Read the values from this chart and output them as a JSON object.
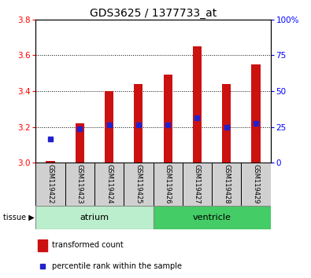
{
  "title": "GDS3625 / 1377733_at",
  "samples": [
    "GSM119422",
    "GSM119423",
    "GSM119424",
    "GSM119425",
    "GSM119426",
    "GSM119427",
    "GSM119428",
    "GSM119429"
  ],
  "bar_tops": [
    3.01,
    3.22,
    3.4,
    3.44,
    3.49,
    3.65,
    3.44,
    3.55
  ],
  "bar_bottom": 3.0,
  "blue_values": [
    3.13,
    3.19,
    3.21,
    3.21,
    3.21,
    3.25,
    3.2,
    3.22
  ],
  "ylim_left": [
    3.0,
    3.8
  ],
  "ylim_right": [
    0,
    100
  ],
  "y_ticks_left": [
    3.0,
    3.2,
    3.4,
    3.6,
    3.8
  ],
  "y_ticks_right": [
    0,
    25,
    50,
    75,
    100
  ],
  "y_tick_labels_right": [
    "0",
    "25",
    "50",
    "75",
    "100%"
  ],
  "bar_color": "#cc1111",
  "blue_color": "#2222cc",
  "atrium_color": "#bbeecc",
  "ventricle_color": "#44cc66",
  "sample_box_color": "#d0d0d0",
  "tissue_label": "tissue",
  "atrium_label": "atrium",
  "ventricle_label": "ventricle",
  "legend_red": "transformed count",
  "legend_blue": "percentile rank within the sample",
  "title_fontsize": 10,
  "tick_fontsize": 7.5,
  "label_fontsize": 8,
  "bar_width": 0.3
}
